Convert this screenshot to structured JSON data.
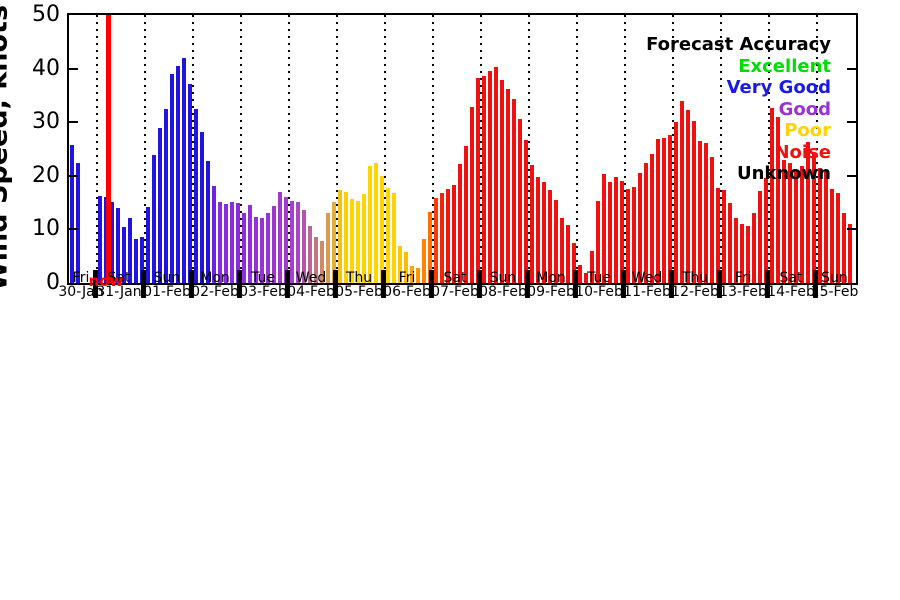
{
  "chart_data": {
    "type": "bar",
    "title": "",
    "ylabel": "Wind Speed, knots",
    "ylim": [
      0,
      50
    ],
    "yticks": [
      0,
      10,
      20,
      30,
      40,
      50
    ],
    "grid": "vertical-dotted-day-boundaries",
    "now_marker": {
      "label": "now",
      "color": "#ff0000",
      "day_index": 1,
      "x_fraction_of_plot": 0.047
    },
    "legend": {
      "position": "top-right",
      "title": {
        "label": "Forecast Accuracy",
        "color": "#000000"
      },
      "entries": [
        {
          "label": "Excellent",
          "color": "#00dd00"
        },
        {
          "label": "Very Good",
          "color": "#1a1ae8"
        },
        {
          "label": "Good",
          "color": "#9932d8"
        },
        {
          "label": "Poor",
          "color": "#ffd400"
        },
        {
          "label": "Noise",
          "color": "#f11010"
        },
        {
          "label": "Unknown",
          "color": "#000000"
        }
      ]
    },
    "bar_unit": "knots",
    "sampling": "3-hourly forecast bars per day",
    "days": [
      {
        "day": "Fri",
        "date": "30-Jan",
        "values": [
          25.8,
          22.3
        ],
        "colors": [
          "#2214e0",
          "#2214e0"
        ]
      },
      {
        "day": "Sat",
        "date": "31-Jan",
        "values": [
          16.2,
          16.0,
          15.2,
          14.0,
          10.4,
          12.1,
          8.2,
          8.6
        ],
        "colors": "#2214e0"
      },
      {
        "day": "Sun",
        "date": "01-Feb",
        "values": [
          14.2,
          23.8,
          29.0,
          32.5,
          38.9,
          40.5,
          41.9,
          37.1
        ],
        "colors": "#2214e0"
      },
      {
        "day": "Mon",
        "date": "02-Feb",
        "values": [
          32.5,
          28.2,
          22.8,
          18.1,
          15.1,
          14.7,
          15.2,
          14.9
        ],
        "colors": [
          "#2214e0",
          "#2214e0",
          "#2214e0",
          "#6b22e2",
          "#8a2be2",
          "#8a2be2",
          "#8a2be2",
          "#8a2be2"
        ]
      },
      {
        "day": "Tue",
        "date": "03-Feb",
        "values": [
          13.0,
          14.6,
          12.4,
          12.1,
          13.0,
          14.3,
          16.9,
          16.1
        ],
        "colors": [
          "#8f2ce0",
          "#922ede",
          "#9530db",
          "#9832d8",
          "#9b34d5",
          "#9e36d2",
          "#a138cf",
          "#a43acc"
        ]
      },
      {
        "day": "Wed",
        "date": "04-Feb",
        "values": [
          15.3,
          15.1,
          13.6,
          10.6,
          8.6,
          7.9,
          13.0,
          15.1
        ],
        "colors": [
          "#a73dd4",
          "#ab45c6",
          "#b355af",
          "#bc6697",
          "#c57780",
          "#cf8968",
          "#d99b51",
          "#e3ad3a"
        ]
      },
      {
        "day": "Thu",
        "date": "05-Feb",
        "values": [
          17.4,
          17.0,
          15.6,
          15.3,
          16.6,
          21.8,
          22.3,
          20.0
        ],
        "colors": [
          "#f2c115",
          "#fdd005",
          "#ffd400",
          "#ffd400",
          "#ffd400",
          "#ffd400",
          "#ffd400",
          "#ffd400"
        ]
      },
      {
        "day": "Fri",
        "date": "06-Feb",
        "values": [
          17.7,
          16.8,
          6.9,
          5.8,
          3.2,
          2.8,
          8.2,
          13.3
        ],
        "colors": [
          "#ffd400",
          "#ffd200",
          "#ffc800",
          "#ffbb00",
          "#ffa800",
          "#ff9500",
          "#ff8200",
          "#ff6f00"
        ]
      },
      {
        "day": "Sat",
        "date": "07-Feb",
        "values": [
          15.8,
          16.8,
          17.5,
          18.2,
          22.2,
          25.6,
          32.8,
          38.2
        ],
        "colors": [
          "#fb3b06",
          "#f62309",
          "#f2150c",
          "#f11010",
          "#f11010",
          "#f11010",
          "#f11010",
          "#f11010"
        ]
      },
      {
        "day": "Sun",
        "date": "08-Feb",
        "values": [
          38.6,
          39.6,
          40.3,
          37.9,
          36.2,
          34.3,
          30.6,
          26.7
        ],
        "colors": "#f11010"
      },
      {
        "day": "Mon",
        "date": "09-Feb",
        "values": [
          22.0,
          19.8,
          18.9,
          17.4,
          15.5,
          12.1,
          10.8,
          7.5
        ],
        "colors": "#f11010"
      },
      {
        "day": "Tue",
        "date": "10-Feb",
        "values": [
          3.4,
          1.9,
          6.0,
          15.3,
          20.3,
          18.9,
          19.8,
          19.1
        ],
        "colors": "#f11010"
      },
      {
        "day": "Wed",
        "date": "11-Feb",
        "values": [
          17.5,
          18.0,
          20.6,
          22.4,
          24.1,
          26.9,
          27.0,
          27.6
        ],
        "colors": "#f11010"
      },
      {
        "day": "Thu",
        "date": "12-Feb",
        "values": [
          30.1,
          34.0,
          32.3,
          30.3,
          26.5,
          26.2,
          23.5,
          17.7
        ],
        "colors": "#f11010"
      },
      {
        "day": "Fri",
        "date": "13-Feb",
        "values": [
          17.4,
          15.0,
          12.1,
          11.0,
          10.6,
          13.1,
          17.2,
          19.6
        ],
        "colors": "#f11010"
      },
      {
        "day": "Sat",
        "date": "14-Feb",
        "values": [
          32.6,
          31.0,
          23.0,
          22.4,
          21.1,
          21.8,
          26.3,
          24.1
        ],
        "colors": "#f11010"
      },
      {
        "day": "Sun",
        "date": "15-Feb",
        "values": [
          21.4,
          21.1,
          17.5,
          16.8,
          13.1,
          11.0
        ],
        "colors": "#f11010"
      }
    ]
  }
}
